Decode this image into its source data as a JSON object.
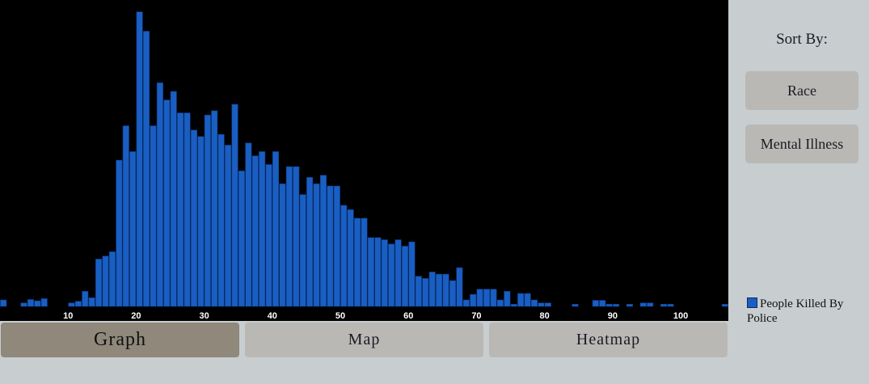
{
  "chart_data": {
    "type": "bar",
    "xlabel": "",
    "ylabel": "",
    "x_ticks": [
      10,
      20,
      30,
      40,
      50,
      60,
      70,
      80,
      90,
      100
    ],
    "xlim": [
      0,
      107
    ],
    "ylim": [
      0,
      70
    ],
    "grid": false,
    "legend_position": "right",
    "series": [
      {
        "name": "People Killed By Police",
        "x": [
          0,
          1,
          2,
          3,
          4,
          5,
          6,
          7,
          8,
          9,
          10,
          11,
          12,
          13,
          14,
          15,
          16,
          17,
          18,
          19,
          20,
          21,
          22,
          23,
          24,
          25,
          26,
          27,
          28,
          29,
          30,
          31,
          32,
          33,
          34,
          35,
          36,
          37,
          38,
          39,
          40,
          41,
          42,
          43,
          44,
          45,
          46,
          47,
          48,
          49,
          50,
          51,
          52,
          53,
          54,
          55,
          56,
          57,
          58,
          59,
          60,
          61,
          62,
          63,
          64,
          65,
          66,
          67,
          68,
          69,
          70,
          71,
          72,
          73,
          74,
          75,
          76,
          77,
          78,
          79,
          80,
          81,
          82,
          83,
          84,
          85,
          86,
          87,
          88,
          89,
          90,
          91,
          92,
          93,
          94,
          95,
          96,
          97,
          98,
          99,
          100,
          101,
          102,
          103,
          104,
          105,
          106
        ],
        "values": [
          1.5,
          0,
          0,
          0.8,
          1.6,
          1.3,
          1.8,
          0,
          0,
          0,
          0.8,
          1.2,
          3.5,
          2,
          11,
          11.7,
          12.7,
          34,
          42,
          36,
          68.5,
          64,
          42,
          52,
          48,
          50,
          45,
          45,
          41,
          39.5,
          44.5,
          45.5,
          40,
          37.5,
          47,
          31.5,
          38,
          35,
          36,
          33,
          36,
          28.5,
          32.5,
          32.5,
          26,
          30,
          28.5,
          30.5,
          28,
          28,
          23.5,
          22.5,
          20.5,
          20.5,
          16,
          16,
          15.5,
          14.5,
          15.5,
          14,
          15,
          7,
          6.5,
          8,
          7.5,
          7.5,
          6,
          9,
          1.5,
          2.8,
          4,
          4,
          4,
          1.5,
          3.5,
          0.5,
          3,
          3,
          1.5,
          0.8,
          0.8,
          0,
          0,
          0,
          0.5,
          0,
          0,
          1.4,
          1.4,
          0.5,
          0.5,
          0,
          0.5,
          0,
          0.8,
          0.8,
          0,
          0.5,
          0.5,
          0,
          0,
          0,
          0,
          0,
          0,
          0,
          0.5
        ]
      }
    ]
  },
  "tabs": {
    "graph": "Graph",
    "map": "Map",
    "heatmap": "Heatmap"
  },
  "sidebar": {
    "title": "Sort By:",
    "race": "Race",
    "mental_illness": "Mental Illness"
  },
  "legend": {
    "label": "People Killed By Police"
  },
  "colors": {
    "bar": "#1a5ec2",
    "chart_background": "#000000",
    "page_background": "#c8cdcf",
    "active_tab": "#8f887b",
    "inactive_tab": "#b9b8b5"
  }
}
